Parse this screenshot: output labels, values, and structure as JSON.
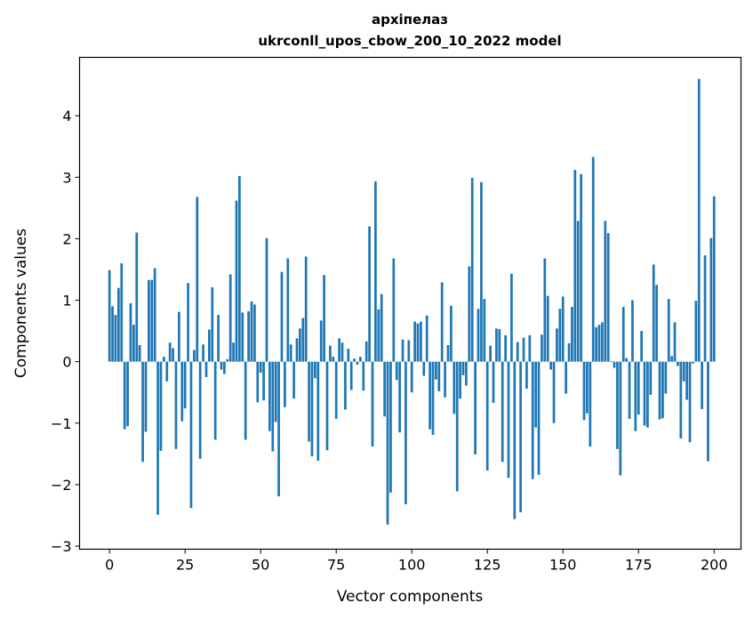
{
  "chart_data": {
    "type": "bar",
    "title": "архіпелаз",
    "subtitle": "ukrconll_upos_cbow_200_10_2022 model",
    "xlabel": "Vector components",
    "ylabel": "Components values",
    "xlim": [
      -9.9,
      208.9
    ],
    "ylim": [
      -3.05,
      4.95
    ],
    "xticks": [
      0,
      25,
      50,
      75,
      100,
      125,
      150,
      175,
      200
    ],
    "yticks": [
      -3,
      -2,
      -1,
      0,
      1,
      2,
      3,
      4
    ],
    "grid": false,
    "bar_color": "#1f77b4",
    "values": [
      1.49,
      0.9,
      0.76,
      1.2,
      1.6,
      -1.1,
      -1.05,
      0.95,
      0.6,
      2.1,
      0.27,
      -1.63,
      -1.14,
      1.33,
      1.33,
      1.52,
      -2.49,
      -1.45,
      0.08,
      -0.32,
      0.31,
      0.22,
      -1.42,
      0.81,
      -0.97,
      -0.76,
      1.28,
      -2.38,
      0.19,
      2.68,
      -1.58,
      0.28,
      -0.25,
      0.52,
      1.21,
      -1.27,
      0.76,
      -0.13,
      -0.2,
      0.04,
      1.42,
      0.31,
      2.62,
      3.02,
      0.8,
      -1.27,
      0.82,
      0.98,
      0.93,
      -0.66,
      -0.18,
      -0.63,
      2.01,
      -1.13,
      -1.46,
      -0.98,
      -2.19,
      1.46,
      -0.74,
      1.68,
      0.28,
      -0.6,
      0.38,
      0.54,
      0.71,
      1.71,
      -1.3,
      -1.54,
      -0.27,
      -1.61,
      0.67,
      1.41,
      -1.44,
      0.26,
      0.08,
      -0.93,
      0.38,
      0.31,
      -0.78,
      0.21,
      -0.46,
      0.05,
      -0.05,
      0.08,
      -0.47,
      0.33,
      2.2,
      -1.38,
      2.93,
      0.85,
      1.1,
      -0.89,
      -2.65,
      -2.13,
      1.68,
      -0.3,
      -1.15,
      0.36,
      -2.32,
      0.35,
      -0.5,
      0.65,
      0.62,
      0.65,
      -0.23,
      0.75,
      -1.1,
      -1.19,
      -0.29,
      -0.48,
      1.29,
      -0.58,
      0.27,
      0.91,
      -0.85,
      -2.11,
      -0.6,
      -0.22,
      -0.39,
      1.55,
      2.99,
      -1.51,
      0.86,
      2.92,
      1.02,
      -1.77,
      0.26,
      -0.67,
      0.54,
      0.53,
      -1.63,
      0.43,
      -1.89,
      1.43,
      -2.56,
      0.32,
      -2.45,
      0.39,
      -0.44,
      0.43,
      -1.91,
      -1.07,
      -1.84,
      0.44,
      1.68,
      1.07,
      -0.13,
      -1.0,
      0.54,
      0.86,
      1.06,
      -0.52,
      0.3,
      0.89,
      3.12,
      2.29,
      3.05,
      -0.95,
      -0.84,
      -1.38,
      3.33,
      0.56,
      0.6,
      0.64,
      2.29,
      2.09,
      0.01,
      -0.1,
      -1.42,
      -1.85,
      0.89,
      0.06,
      -0.93,
      1.0,
      -1.13,
      -0.86,
      0.5,
      -1.04,
      -1.07,
      -0.54,
      1.58,
      1.25,
      -0.94,
      -0.92,
      -0.52,
      1.02,
      0.09,
      0.64,
      -0.07,
      -1.25,
      -0.32,
      -0.62,
      -1.31,
      -0.03,
      0.99,
      4.6,
      -0.77,
      1.73,
      -1.62,
      2.01,
      2.69
    ]
  }
}
